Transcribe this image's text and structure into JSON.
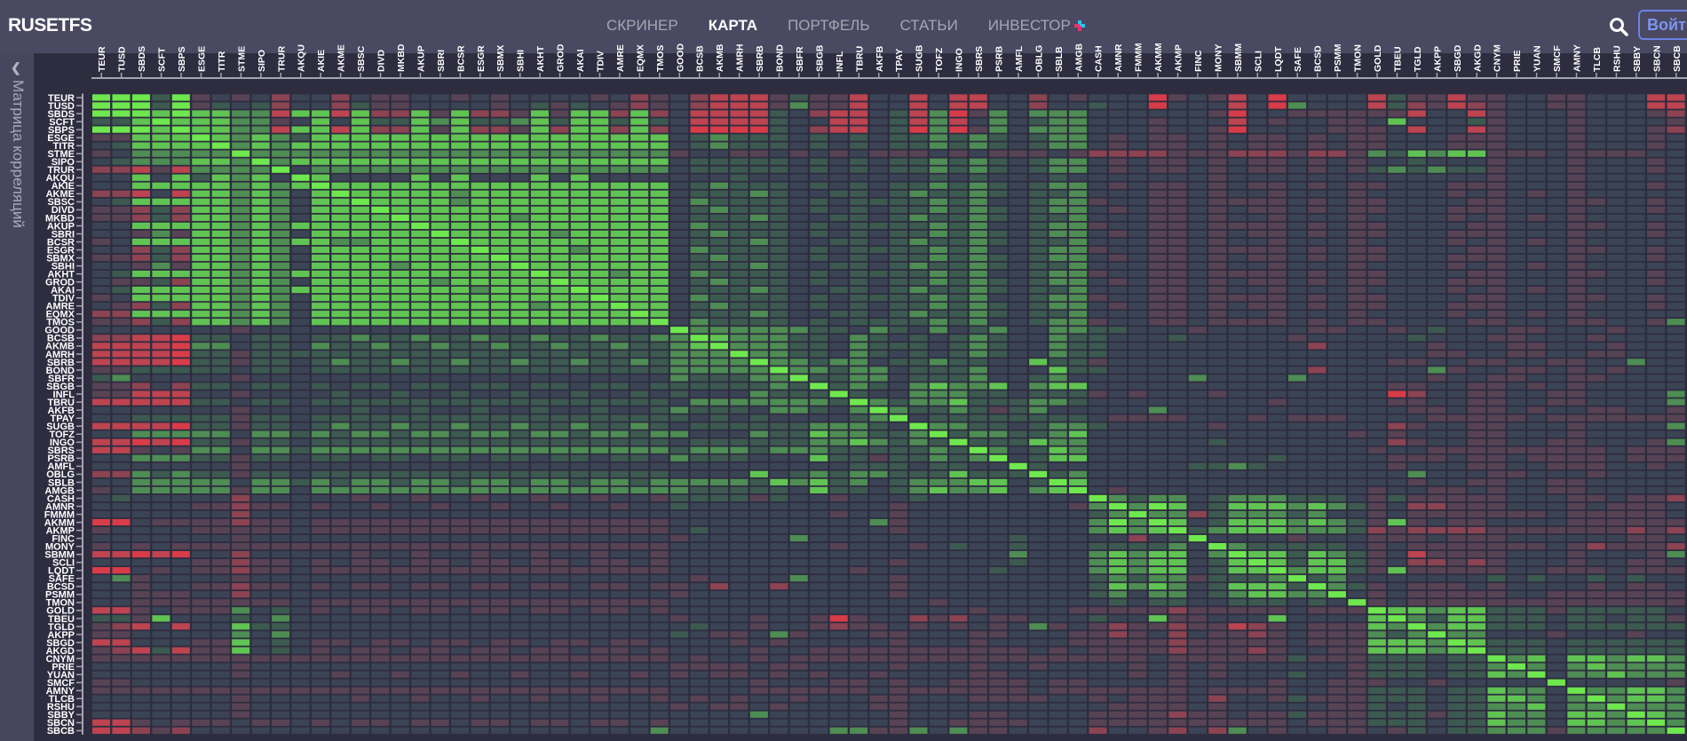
{
  "header": {
    "logo": "RUSETFS",
    "nav": [
      {
        "label": "СКРИНЕР",
        "active": false
      },
      {
        "label": "КАРТА",
        "active": true
      },
      {
        "label": "ПОРТФЕЛЬ",
        "active": false
      },
      {
        "label": "СТАТЬИ",
        "active": false
      },
      {
        "label": "ИНВЕСТОР",
        "active": false
      }
    ],
    "search_icon": "search-icon",
    "login_label": "Войти"
  },
  "sidebar": {
    "title": "Матрица корреляций",
    "icon": "chevron-up-icon"
  },
  "colors": {
    "header_bg": "#4a4961",
    "page_bg": "#2e2d40",
    "accent": "#6a82e6",
    "scale": [
      "#d83c48",
      "#bd4450",
      "#8c4352",
      "#574354",
      "#3b4455",
      "#3c5a50",
      "#4e8d53",
      "#60c452",
      "#6ee84e"
    ]
  },
  "chart_data": {
    "type": "heatmap",
    "tickers": [
      "TEUR",
      "TUSD",
      "SBDS",
      "SCFT",
      "SBPS",
      "ESGE",
      "TITR",
      "STME",
      "SIPO",
      "TRUR",
      "AKQU",
      "AKIE",
      "AKME",
      "SBSC",
      "DIVD",
      "MKBD",
      "AKUP",
      "SBRI",
      "BCSR",
      "ESGR",
      "SBMX",
      "SBHI",
      "AKHT",
      "GROD",
      "AKAI",
      "TDIV",
      "AMRE",
      "EQMX",
      "TMOS",
      "GOOD",
      "BCSB",
      "AKMB",
      "AMRH",
      "SBRB",
      "BOND",
      "SBFR",
      "SBGB",
      "INFL",
      "TBRU",
      "AKFB",
      "TPAY",
      "SUGB",
      "TOFZ",
      "INGO",
      "SBRS",
      "PSRB",
      "AMFL",
      "OBLG",
      "SBLB",
      "AMGB",
      "CASH",
      "AMNR",
      "FMMM",
      "AKMM",
      "AKMP",
      "FINC",
      "MONY",
      "SBMM",
      "SCLI",
      "LQDT",
      "SAFE",
      "BCSD",
      "PSMM",
      "TMON",
      "GOLD",
      "TBEU",
      "TGLD",
      "AKPP",
      "SBGD",
      "AKGD",
      "CNYM",
      "PRIE",
      "YUAN",
      "SMCF",
      "AMNY",
      "TLCB",
      "RSHU",
      "SBBY",
      "SBCN",
      "SBCB"
    ],
    "value_range": [
      -1,
      1
    ],
    "levels": [
      -1,
      -0.75,
      -0.5,
      -0.25,
      0,
      0.25,
      0.5,
      0.75,
      1
    ],
    "symmetric": true,
    "upper_triangle_levels": [
      "88858343424424334434344443423421113533144141144243444034314044441533133443344411",
      "8858354524425334444345354323421113633144141144244544044414064441523123443344411",
      "878776617717227372237377272411115421145160364666444444304433333314413444344432",
      "87776634747557675567577575411115441145161464566444344414344334744453444344443",
      "8776617717227372237277272400005421145060364666444344304444333414413444344432",
      "876765777777777777777777456555454545565654566434334343343433444333444344434",
      "86767777777777777777777456555454545565654566434334343343433444333444344434",
      "8666666666666666666666344334343433343433343222233322232236576773334333344",
      "867777777777777777777455555454545565654566434334343343434454443444344434",
      "84666666666666666666455555454545565654566434334343343435656553444344434",
      "8744447474447474444444544444444454544454444444344444444444443444344444",
      "877777777777777777456555454545565654566434334343343433444333444344434",
      "87777767777777777455565445545655654556444334344344434444343434344444",
      "8777767777777777465555454555565644566344334333343433444433444334434",
      "877777777777777456555454545565654566434334343343433444333444344434",
      "87777767777777455565445545655654556444334344344434444343434344444",
      "8777777777777465555454555565644566344334333343433444433444334434",
      "877777677777456555454545565654566434334343343433444333444344434",
      "87777777777455565445545655654556444334344344434444343434344444",
      "8777767777465555454555565644566344334333343433444433444334434",
      "877777777456555454545565654566434334343343433444333444344434",
      "87777777455565445545655654556444334344344434444343434344444",
      "8777677465555454555565644566344334333343433444433444334434",
      "877777456555454545565654566434334343343433444333444344434",
      "87777455565445545655654556444334344344434444343434344444",
      "8777465555454555565644566344334333343433444433444334434",
      "877456555454545565654566434334343343433444333444344434",
      "87455565445545655654556444334344344434444343434344444",
      "8465555454555565644566344334333343433444433444334436",
      "8666666554654645644665544434444433443454443344434444",
      "876665546545456544655444544444344444544433444344446",
      "86665546555456544655444444444424444434443344434446",
      "8665546545456544655444444444444444433443344334446",
      "866566455655447553444444444444443344334433446",
      "86656645556444755444444444424444463443343434444",
      "8556645556445644444464444644444434433443344444",
      "85654676674677444444444444444334433434344444",
      "8544666554555343444344444444024433443344446",
      "865667555665444444444344444334433443344446",
      "86556535644444644444444444433433434433443",
      "8455555555433334443433344443333343333333",
      "866554566544444344444444234433444344446",
      "85665567444444444444434344433444344444",
      "8555766444444544444444234433443344436",
      "864576444444444444443443333333334333",
      "84577444444444544444333433433334333",
      "8544444445565444444344433443334434",
      "856444444444444444464443344434444444",
      "87444444444444444434433443344444",
      "8434444444444443443343443344444",
      "865664566655543533333444334332",
      "86874577767653422333444343334",
      "8662566656443433333334333334",
      "874577767653734334444333333",
      "85677766652322223333333232",
      "8444434443334333444444334",
      "865555543433333334323332",
      "87757653413333444344436",
      "8757753422323444344334",
      "867753733333443334333",
      "85644444445454454544",
      "8653433343444434334",
      "843433333443333333",
      "83433333333333333",
      "8776775553555554",
      "865775554554553",
      "86775554555555",
      "8664443444344",
      "875554555555",
      "85554555555",
      "8674776776",
      "864676666",
      "84667666",
      "8444443",
      "866776",
      "86776",
      "8666",
      "876",
      "86",
      "8"
    ]
  }
}
